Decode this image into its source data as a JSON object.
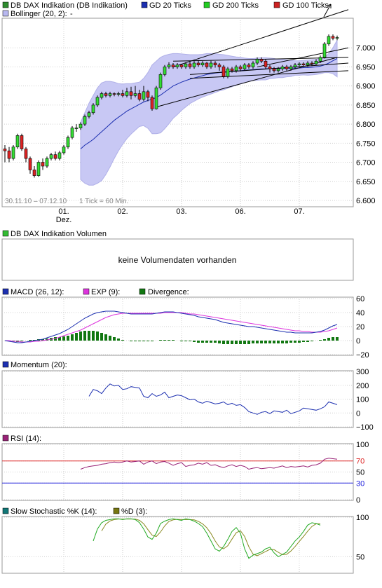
{
  "legend_main": [
    {
      "label": "DB DAX Indikation (DB Indikation)",
      "color": "#2e8b2e"
    },
    {
      "label": "GD 20 Ticks",
      "color": "#1c2fb0"
    },
    {
      "label": "GD 200 Ticks",
      "color": "#22cc22"
    },
    {
      "label": "GD 100 Ticks",
      "color": "#cc2222"
    }
  ],
  "legend_bollinger": {
    "label": "Bollinger (20, 2):",
    "value": "-",
    "color": "#b8b8f0"
  },
  "main_info": {
    "range": "30.11.10 – 07.12.10",
    "tick": "1 Tick = 60 Min."
  },
  "volume": {
    "legend": "DB DAX Indikation Volumen",
    "message": "keine Volumendaten vorhanden",
    "color": "#33bb33"
  },
  "macd_legend": [
    {
      "label": "MACD (26, 12):",
      "color": "#1c2fb0"
    },
    {
      "label": "EXP (9):",
      "color": "#dd33dd"
    },
    {
      "label": "Divergence:",
      "color": "#117711"
    }
  ],
  "momentum_legend": {
    "label": "Momentum (20):",
    "color": "#1c2fb0"
  },
  "rsi_legend": {
    "label": "RSI (14):",
    "color": "#992277"
  },
  "stoch_legend": [
    {
      "label": "Slow Stochastic %K (14):",
      "color": "#117777"
    },
    {
      "label": "%D (3):",
      "color": "#777711"
    }
  ],
  "chart_data": [
    {
      "type": "candlestick",
      "x_ticks": [
        "01.",
        "02.",
        "03.",
        "06.",
        "07."
      ],
      "x_sublabel": "Dez.",
      "ylim": [
        6.6,
        7.05
      ],
      "y_ticks": [
        "7.000",
        "6.950",
        "6.900",
        "6.850",
        "6.800",
        "6.750",
        "6.700",
        "6.650",
        "6.600"
      ],
      "candles": [
        [
          6.735,
          6.73,
          6.7,
          6.745
        ],
        [
          6.73,
          6.71,
          6.7,
          6.74
        ],
        [
          6.71,
          6.74,
          6.705,
          6.745
        ],
        [
          6.74,
          6.77,
          6.735,
          6.775
        ],
        [
          6.77,
          6.735,
          6.73,
          6.775
        ],
        [
          6.735,
          6.71,
          6.7,
          6.74
        ],
        [
          6.71,
          6.68,
          6.67,
          6.715
        ],
        [
          6.68,
          6.665,
          6.66,
          6.69
        ],
        [
          6.665,
          6.7,
          6.662,
          6.705
        ],
        [
          6.7,
          6.69,
          6.68,
          6.71
        ],
        [
          6.69,
          6.71,
          6.685,
          6.715
        ],
        [
          6.71,
          6.72,
          6.705,
          6.725
        ],
        [
          6.72,
          6.71,
          6.705,
          6.728
        ],
        [
          6.71,
          6.725,
          6.705,
          6.73
        ],
        [
          6.725,
          6.74,
          6.72,
          6.745
        ],
        [
          6.74,
          6.765,
          6.735,
          6.77
        ],
        [
          6.765,
          6.79,
          6.76,
          6.795
        ],
        [
          6.79,
          6.79,
          6.78,
          6.8
        ],
        [
          6.79,
          6.8,
          6.785,
          6.805
        ],
        [
          6.8,
          6.82,
          6.795,
          6.825
        ],
        [
          6.82,
          6.83,
          6.815,
          6.835
        ],
        [
          6.83,
          6.85,
          6.825,
          6.855
        ],
        [
          6.85,
          6.87,
          6.845,
          6.875
        ],
        [
          6.87,
          6.88,
          6.865,
          6.885
        ],
        [
          6.88,
          6.875,
          6.87,
          6.885
        ],
        [
          6.875,
          6.88,
          6.87,
          6.885
        ],
        [
          6.88,
          6.878,
          6.873,
          6.883
        ],
        [
          6.878,
          6.88,
          6.873,
          6.885
        ],
        [
          6.88,
          6.875,
          6.87,
          6.89
        ],
        [
          6.875,
          6.885,
          6.87,
          6.895
        ],
        [
          6.885,
          6.875,
          6.865,
          6.898
        ],
        [
          6.875,
          6.88,
          6.87,
          6.9
        ],
        [
          6.88,
          6.865,
          6.86,
          6.89
        ],
        [
          6.865,
          6.885,
          6.86,
          6.9
        ],
        [
          6.885,
          6.87,
          6.86,
          6.89
        ],
        [
          6.87,
          6.84,
          6.835,
          6.875
        ],
        [
          6.84,
          6.895,
          6.838,
          6.9
        ],
        [
          6.895,
          6.93,
          6.89,
          6.935
        ],
        [
          6.93,
          6.95,
          6.925,
          6.955
        ],
        [
          6.95,
          6.955,
          6.945,
          6.962
        ],
        [
          6.955,
          6.95,
          6.945,
          6.96
        ],
        [
          6.95,
          6.955,
          6.945,
          6.96
        ],
        [
          6.955,
          6.95,
          6.945,
          6.958
        ],
        [
          6.95,
          6.958,
          6.945,
          6.962
        ],
        [
          6.958,
          6.95,
          6.945,
          6.965
        ],
        [
          6.95,
          6.96,
          6.945,
          6.965
        ],
        [
          6.96,
          6.955,
          6.95,
          6.968
        ],
        [
          6.955,
          6.96,
          6.95,
          6.965
        ],
        [
          6.96,
          6.95,
          6.945,
          6.963
        ],
        [
          6.95,
          6.96,
          6.945,
          6.966
        ],
        [
          6.96,
          6.955,
          6.948,
          6.965
        ],
        [
          6.955,
          6.95,
          6.94,
          6.96
        ],
        [
          6.95,
          6.925,
          6.92,
          6.955
        ],
        [
          6.925,
          6.945,
          6.92,
          6.95
        ],
        [
          6.945,
          6.94,
          6.935,
          6.95
        ],
        [
          6.94,
          6.95,
          6.935,
          6.955
        ],
        [
          6.95,
          6.945,
          6.938,
          6.955
        ],
        [
          6.945,
          6.955,
          6.94,
          6.96
        ],
        [
          6.955,
          6.95,
          6.945,
          6.96
        ],
        [
          6.95,
          6.96,
          6.945,
          6.965
        ],
        [
          6.96,
          6.97,
          6.955,
          6.975
        ],
        [
          6.97,
          6.965,
          6.96,
          6.975
        ],
        [
          6.965,
          6.95,
          6.945,
          6.97
        ],
        [
          6.95,
          6.945,
          6.935,
          6.955
        ],
        [
          6.945,
          6.94,
          6.935,
          6.95
        ],
        [
          6.94,
          6.945,
          6.935,
          6.95
        ],
        [
          6.945,
          6.95,
          6.94,
          6.955
        ],
        [
          6.95,
          6.945,
          6.94,
          6.955
        ],
        [
          6.945,
          6.95,
          6.94,
          6.955
        ],
        [
          6.95,
          6.955,
          6.945,
          6.96
        ],
        [
          6.955,
          6.958,
          6.95,
          6.962
        ],
        [
          6.958,
          6.955,
          6.95,
          6.962
        ],
        [
          6.955,
          6.96,
          6.95,
          6.965
        ],
        [
          6.96,
          6.958,
          6.952,
          6.965
        ],
        [
          6.958,
          6.965,
          6.955,
          6.97
        ],
        [
          6.965,
          6.975,
          6.96,
          6.98
        ],
        [
          6.975,
          7.01,
          6.972,
          7.015
        ],
        [
          7.01,
          7.03,
          7.005,
          7.035
        ],
        [
          7.03,
          7.025,
          7.02,
          7.035
        ],
        [
          7.025,
          7.027,
          7.02,
          7.032
        ]
      ],
      "sma20": [
        null,
        null,
        null,
        null,
        null,
        null,
        null,
        null,
        null,
        null,
        null,
        null,
        null,
        null,
        null,
        null,
        null,
        null,
        6.735,
        6.745,
        6.752,
        6.76,
        6.77,
        6.78,
        6.79,
        6.8,
        6.81,
        6.818,
        6.826,
        6.834,
        6.84,
        6.846,
        6.852,
        6.858,
        6.862,
        6.865,
        6.87,
        6.876,
        6.884,
        6.892,
        6.9,
        6.905,
        6.91,
        6.914,
        6.918,
        6.921,
        6.924,
        6.927,
        6.93,
        6.932,
        6.934,
        6.935,
        6.936,
        6.937,
        6.938,
        6.939,
        6.94,
        6.941,
        6.942,
        6.943,
        6.944,
        6.945,
        6.945,
        6.946,
        6.946,
        6.946,
        6.946,
        6.946,
        6.946,
        6.947,
        6.947,
        6.948,
        6.948,
        6.949,
        6.95,
        6.952,
        6.955,
        6.96,
        6.966,
        6.972
      ],
      "bollinger_upper": [
        null,
        null,
        null,
        null,
        null,
        null,
        null,
        null,
        null,
        null,
        null,
        null,
        null,
        null,
        null,
        null,
        null,
        null,
        6.805,
        6.83,
        6.855,
        6.875,
        6.895,
        6.908,
        6.912,
        6.912,
        6.91,
        6.906,
        6.905,
        6.906,
        6.906,
        6.908,
        6.91,
        6.92,
        6.935,
        6.955,
        6.965,
        6.975,
        6.98,
        6.983,
        6.985,
        6.985,
        6.984,
        6.983,
        6.982,
        6.982,
        6.982,
        6.983,
        6.985,
        6.985,
        6.985,
        6.983,
        6.982,
        6.98,
        6.978,
        6.976,
        6.975,
        6.973,
        6.972,
        6.972,
        6.973,
        6.974,
        6.974,
        6.973,
        6.972,
        6.97,
        6.97,
        6.968,
        6.967,
        6.966,
        6.966,
        6.967,
        6.968,
        6.969,
        6.97,
        6.972,
        6.975,
        6.985,
        7.0,
        7.02
      ],
      "bollinger_lower": [
        null,
        null,
        null,
        null,
        null,
        null,
        null,
        null,
        null,
        null,
        null,
        null,
        null,
        null,
        null,
        null,
        null,
        null,
        6.655,
        6.645,
        6.64,
        6.64,
        6.645,
        6.652,
        6.668,
        6.688,
        6.71,
        6.73,
        6.747,
        6.762,
        6.774,
        6.784,
        6.794,
        6.796,
        6.789,
        6.775,
        6.775,
        6.777,
        6.788,
        6.801,
        6.815,
        6.825,
        6.836,
        6.845,
        6.854,
        6.86,
        6.866,
        6.871,
        6.875,
        6.879,
        6.883,
        6.887,
        6.89,
        6.894,
        6.898,
        6.902,
        6.905,
        6.909,
        6.912,
        6.914,
        6.915,
        6.916,
        6.916,
        6.919,
        6.92,
        6.922,
        6.922,
        6.924,
        6.925,
        6.928,
        6.928,
        6.929,
        6.928,
        6.929,
        6.93,
        6.932,
        6.935,
        6.935,
        6.932,
        6.924
      ],
      "trendlines": [
        {
          "from": [
            36,
            6.845
          ],
          "to": [
            79,
            6.975
          ]
        },
        {
          "from": [
            40,
            6.95
          ],
          "to": [
            82,
            7.1
          ]
        },
        {
          "from": [
            40,
            6.965
          ],
          "to": [
            82,
            6.975
          ]
        },
        {
          "from": [
            44,
            6.93
          ],
          "to": [
            82,
            6.96
          ]
        },
        {
          "from": [
            44,
            6.92
          ],
          "to": [
            82,
            6.94
          ]
        },
        {
          "from": [
            60,
            6.95
          ],
          "to": [
            82,
            7.0
          ]
        }
      ]
    },
    {
      "type": "line",
      "name": "MACD",
      "ylim": [
        -20,
        60
      ],
      "y_ticks": [
        "60",
        "40",
        "20",
        "0",
        "−20"
      ],
      "macd": [
        0,
        -1,
        -2,
        -3,
        -3,
        -2,
        -1,
        0,
        1,
        2,
        4,
        6,
        8,
        10,
        13,
        16,
        20,
        24,
        28,
        32,
        35,
        38,
        40,
        41,
        42,
        42,
        42,
        41,
        40,
        39,
        38,
        38,
        38,
        38,
        38,
        38,
        39,
        40,
        41,
        41,
        41,
        40,
        39,
        38,
        37,
        36,
        34,
        33,
        32,
        31,
        30,
        28,
        26,
        25,
        24,
        23,
        22,
        21,
        20,
        20,
        19,
        18,
        17,
        16,
        15,
        14,
        13,
        12,
        12,
        11,
        11,
        11,
        11,
        11,
        12,
        13,
        15,
        18,
        21,
        23
      ],
      "signal": [
        0,
        0,
        -1,
        -1,
        -2,
        -2,
        -2,
        -1,
        -1,
        0,
        1,
        2,
        3,
        5,
        7,
        9,
        11,
        13,
        15,
        18,
        21,
        24,
        27,
        30,
        33,
        35,
        37,
        38,
        39,
        39,
        39,
        39,
        39,
        39,
        39,
        39,
        39,
        39,
        40,
        40,
        40,
        40,
        40,
        39,
        38,
        38,
        37,
        36,
        35,
        34,
        33,
        32,
        31,
        30,
        29,
        28,
        27,
        26,
        25,
        24,
        23,
        22,
        21,
        20,
        19,
        18,
        17,
        16,
        15,
        14,
        14,
        13,
        13,
        12,
        12,
        12,
        13,
        14,
        16,
        18
      ],
      "divergence": [
        0,
        -1,
        -1,
        -2,
        -1,
        0,
        1,
        1,
        2,
        2,
        3,
        4,
        5,
        5,
        6,
        7,
        9,
        11,
        13,
        14,
        14,
        14,
        13,
        11,
        9,
        7,
        5,
        3,
        1,
        0,
        -1,
        -1,
        -1,
        -1,
        -1,
        -1,
        0,
        1,
        1,
        1,
        1,
        0,
        -1,
        -1,
        -1,
        -2,
        -3,
        -3,
        -3,
        -3,
        -3,
        -4,
        -5,
        -5,
        -5,
        -5,
        -5,
        -5,
        -5,
        -4,
        -4,
        -4,
        -4,
        -4,
        -4,
        -4,
        -4,
        -4,
        -3,
        -3,
        -3,
        -2,
        -2,
        -1,
        0,
        1,
        2,
        4,
        5,
        5
      ]
    },
    {
      "type": "line",
      "name": "Momentum",
      "ylim": [
        -100,
        300
      ],
      "y_ticks": [
        "300",
        "200",
        "100",
        "0",
        "−100"
      ],
      "values": [
        null,
        null,
        null,
        null,
        null,
        null,
        null,
        null,
        null,
        null,
        null,
        null,
        null,
        null,
        null,
        null,
        null,
        null,
        null,
        null,
        120,
        170,
        160,
        140,
        180,
        210,
        195,
        200,
        170,
        175,
        190,
        185,
        180,
        120,
        110,
        140,
        120,
        130,
        150,
        110,
        120,
        130,
        125,
        110,
        95,
        100,
        80,
        70,
        85,
        75,
        65,
        70,
        80,
        60,
        70,
        55,
        60,
        40,
        10,
        0,
        -10,
        5,
        10,
        -5,
        15,
        10,
        5,
        20,
        -5,
        5,
        15,
        35,
        30,
        25,
        20,
        30,
        45,
        80,
        70,
        60
      ]
    },
    {
      "type": "line",
      "name": "RSI",
      "ylim": [
        0,
        100
      ],
      "y_ticks": [
        "100",
        "70",
        "50",
        "30",
        "0"
      ],
      "levels": [
        70,
        30
      ],
      "values": [
        null,
        null,
        null,
        null,
        null,
        null,
        null,
        null,
        null,
        null,
        null,
        null,
        null,
        null,
        null,
        null,
        null,
        null,
        55,
        58,
        60,
        61,
        62,
        64,
        65,
        67,
        68,
        67,
        68,
        70,
        68,
        69,
        70,
        64,
        68,
        70,
        65,
        68,
        69,
        66,
        62,
        65,
        67,
        60,
        62,
        63,
        66,
        64,
        67,
        62,
        63,
        60,
        58,
        61,
        63,
        60,
        62,
        60,
        55,
        57,
        58,
        56,
        57,
        58,
        57,
        59,
        61,
        58,
        60,
        59,
        60,
        61,
        59,
        62,
        63,
        66,
        73,
        75,
        74,
        73
      ]
    },
    {
      "type": "line",
      "name": "Slow Stochastic",
      "ylim": [
        30,
        100
      ],
      "y_ticks": [
        "100",
        "50"
      ],
      "k": [
        null,
        null,
        null,
        null,
        null,
        null,
        null,
        null,
        null,
        null,
        null,
        null,
        null,
        null,
        null,
        null,
        null,
        null,
        null,
        null,
        null,
        70,
        85,
        93,
        96,
        97,
        98,
        98,
        97,
        98,
        98,
        97,
        93,
        85,
        75,
        72,
        80,
        92,
        95,
        97,
        98,
        97,
        96,
        98,
        97,
        95,
        92,
        88,
        80,
        70,
        60,
        57,
        63,
        72,
        82,
        87,
        80,
        60,
        48,
        52,
        54,
        56,
        60,
        62,
        55,
        50,
        53,
        56,
        63,
        70,
        75,
        82,
        90,
        93,
        92,
        90
      ]
    }
  ]
}
